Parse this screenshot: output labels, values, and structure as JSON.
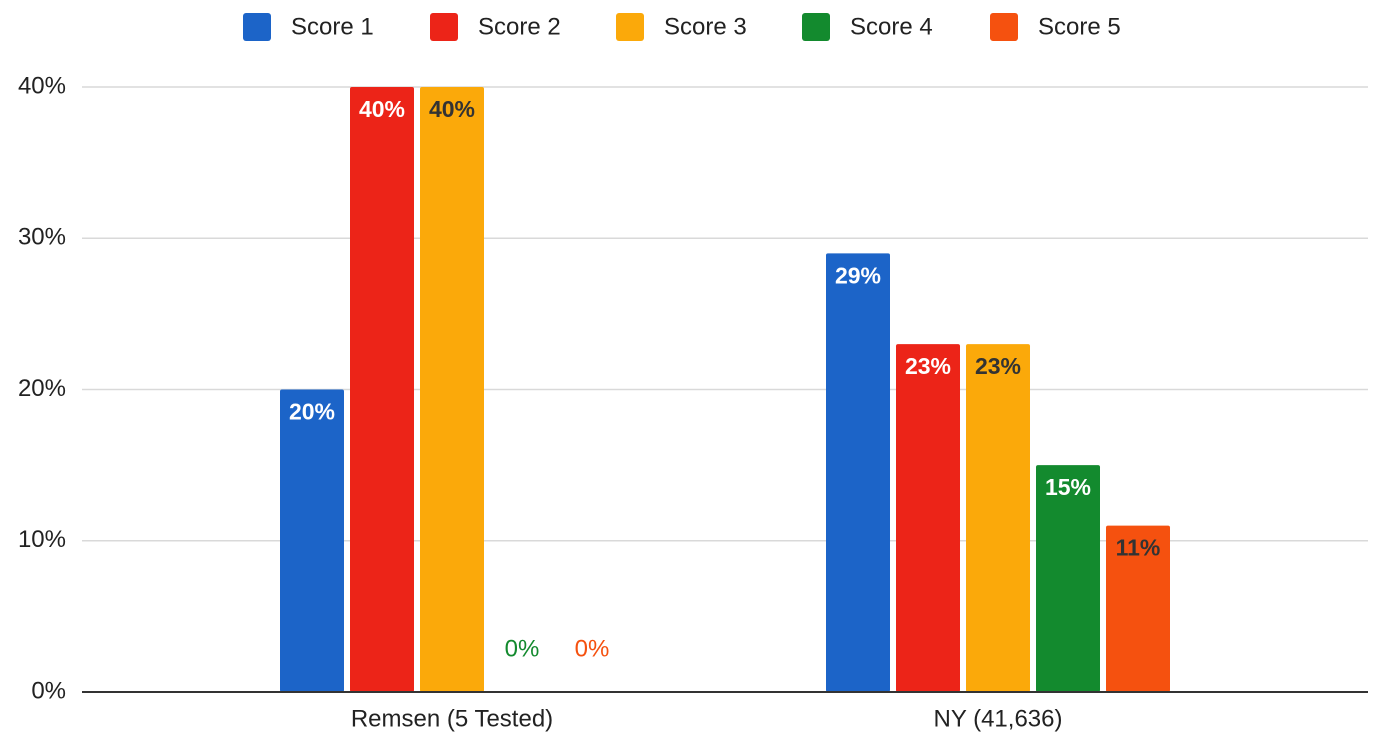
{
  "chart_data": {
    "type": "bar",
    "categories": [
      "Remsen (5 Tested)",
      "NY (41,636)"
    ],
    "series": [
      {
        "name": "Score 1",
        "color": "#1c64c8",
        "label_color": "#ffffff",
        "values": [
          20,
          29
        ],
        "value_labels": [
          "20%",
          "29%"
        ]
      },
      {
        "name": "Score 2",
        "color": "#ec2418",
        "label_color": "#ffffff",
        "values": [
          40,
          23
        ],
        "value_labels": [
          "40%",
          "23%"
        ]
      },
      {
        "name": "Score 3",
        "color": "#fba90a",
        "label_color": "#333333",
        "values": [
          40,
          23
        ],
        "value_labels": [
          "40%",
          "23%"
        ]
      },
      {
        "name": "Score 4",
        "color": "#138a2e",
        "label_color": "#ffffff",
        "values": [
          0,
          15
        ],
        "value_labels": [
          "0%",
          "15%"
        ]
      },
      {
        "name": "Score 5",
        "color": "#f5510f",
        "label_color": "#333333",
        "values": [
          0,
          11
        ],
        "value_labels": [
          "0%",
          "11%"
        ]
      }
    ],
    "ylim": [
      0,
      40
    ],
    "yticks": [
      {
        "value": 0,
        "label": "0%"
      },
      {
        "value": 10,
        "label": "10%"
      },
      {
        "value": 20,
        "label": "20%"
      },
      {
        "value": 30,
        "label": "30%"
      },
      {
        "value": 40,
        "label": "40%"
      }
    ],
    "grid": true,
    "legend": "top"
  }
}
